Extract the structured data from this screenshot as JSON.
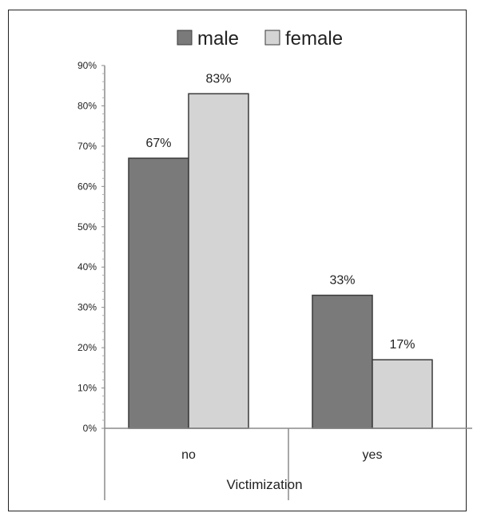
{
  "chart_data": {
    "type": "bar",
    "categories": [
      "no",
      "yes"
    ],
    "series": [
      {
        "name": "male",
        "values": [
          67,
          33
        ],
        "labels": [
          "67%",
          "33%"
        ],
        "color": "#7a7a7a"
      },
      {
        "name": "female",
        "values": [
          83,
          17
        ],
        "labels": [
          "83%",
          "17%"
        ],
        "color": "#d4d4d4"
      }
    ],
    "xlabel": "Victimization",
    "ylabel": "",
    "ylim": [
      0,
      90
    ],
    "yticks": [
      "0%",
      "10%",
      "20%",
      "30%",
      "40%",
      "50%",
      "60%",
      "70%",
      "80%",
      "90%"
    ],
    "legend_position": "top",
    "grid": false
  }
}
